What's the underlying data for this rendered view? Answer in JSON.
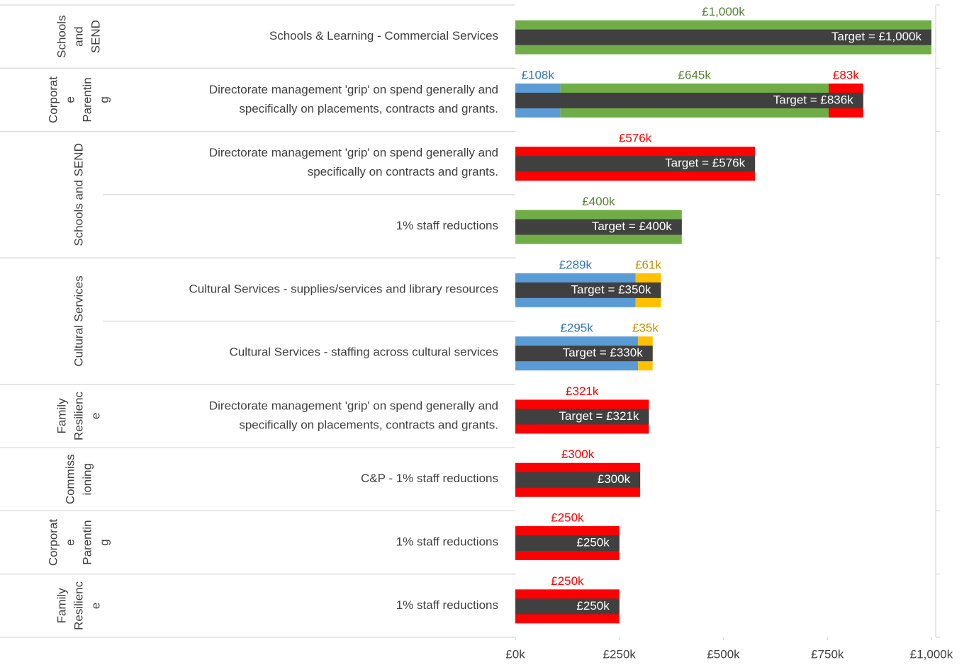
{
  "chart_data": {
    "type": "stacked-bar-target",
    "groups": [
      {
        "label": [
          "Schools",
          "and",
          "SEND"
        ],
        "categories": [
          [
            "Schools & Learning - Commercial Services"
          ]
        ]
      },
      {
        "label": [
          "Corporat",
          "e",
          "Parentin",
          "g"
        ],
        "categories": [
          [
            "Directorate management 'grip' on spend generally and",
            "specifically on placements, contracts and grants."
          ]
        ]
      },
      {
        "label": [
          "Schools and SEND"
        ],
        "categories": [
          [
            "Directorate management 'grip' on spend generally and",
            "specifically on contracts and grants."
          ],
          [
            "1% staff reductions"
          ]
        ]
      },
      {
        "label": [
          "Cultural Services"
        ],
        "categories": [
          [
            "Cultural Services - supplies/services and library resources"
          ],
          [
            "Cultural Services - staffing across cultural services"
          ]
        ]
      },
      {
        "label": [
          "Family",
          "Resilienc",
          "e"
        ],
        "categories": [
          [
            "Directorate management 'grip' on spend generally and",
            "specifically on placements, contracts and grants."
          ]
        ]
      },
      {
        "label": [
          "Commiss",
          "ioning"
        ],
        "categories": [
          [
            "C&P - 1% staff reductions"
          ]
        ]
      },
      {
        "label": [
          "Corporat",
          "e",
          "Parentin",
          "g"
        ],
        "categories": [
          [
            "1% staff reductions"
          ]
        ]
      },
      {
        "label": [
          "Family",
          "Resilienc",
          "e"
        ],
        "categories": [
          [
            "1% staff reductions"
          ]
        ]
      }
    ],
    "series": [
      {
        "color": "#5b9bd5",
        "label_color": "#2e75b6",
        "values": [
          null,
          108,
          null,
          null,
          289,
          295,
          null,
          null,
          null,
          null
        ],
        "value_labels": [
          null,
          "£108k",
          null,
          null,
          "£289k",
          "£295k",
          null,
          null,
          null,
          null
        ]
      },
      {
        "color": "#70ad47",
        "label_color": "#548235",
        "values": [
          1000,
          645,
          null,
          400,
          null,
          null,
          null,
          null,
          null,
          null
        ],
        "value_labels": [
          "£1,000k",
          "£645k",
          null,
          "£400k",
          null,
          null,
          null,
          null,
          null,
          null
        ]
      },
      {
        "color": "#ffc000",
        "label_color": "#bf9000",
        "values": [
          null,
          null,
          null,
          null,
          61,
          35,
          null,
          null,
          null,
          null
        ],
        "value_labels": [
          null,
          null,
          null,
          null,
          "£61k",
          "£35k",
          null,
          null,
          null,
          null
        ]
      },
      {
        "color": "#ff0000",
        "label_color": "#ff0000",
        "values": [
          null,
          83,
          576,
          null,
          null,
          null,
          321,
          300,
          250,
          250
        ],
        "value_labels": [
          null,
          "£83k",
          "£576k",
          null,
          null,
          null,
          "£321k",
          "£300k",
          "£250k",
          "£250k"
        ]
      }
    ],
    "target": {
      "color": "#404040",
      "values": [
        1000,
        836,
        576,
        400,
        350,
        330,
        321,
        300,
        250,
        250
      ],
      "value_labels": [
        "Target =  £1,000k",
        "Target =  £836k",
        "Target =  £576k",
        "Target =  £400k",
        "Target = £350k",
        "Target = £330k",
        "Target = £321k",
        "£300k",
        "£250k",
        "£250k"
      ]
    },
    "xlim": [
      0,
      1000
    ],
    "xticks": [
      {
        "value": 0,
        "label": "£0k"
      },
      {
        "value": 250,
        "label": "£250k"
      },
      {
        "value": 500,
        "label": "£500k"
      },
      {
        "value": 750,
        "label": "£750k"
      },
      {
        "value": 1000,
        "label": "£1,000k"
      }
    ]
  }
}
